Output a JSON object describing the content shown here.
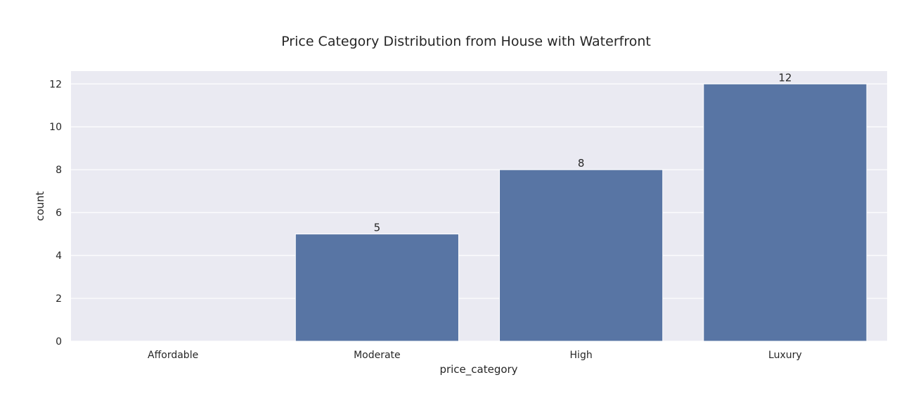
{
  "chart_data": {
    "type": "bar",
    "title": "Price Category Distribution from House with Waterfront",
    "xlabel": "price_category",
    "ylabel": "count",
    "categories": [
      "Affordable",
      "Moderate",
      "High",
      "Luxury"
    ],
    "values": [
      0,
      5,
      8,
      12
    ],
    "data_labels": [
      "",
      "5",
      "8",
      "12"
    ],
    "ylim": [
      0,
      12.6
    ],
    "yticks": [
      0,
      2,
      4,
      6,
      8,
      10,
      12
    ],
    "grid": true,
    "colors": {
      "bar": "#5875a4",
      "plot_background": "#eaeaf2",
      "grid": "#ffffff"
    }
  }
}
